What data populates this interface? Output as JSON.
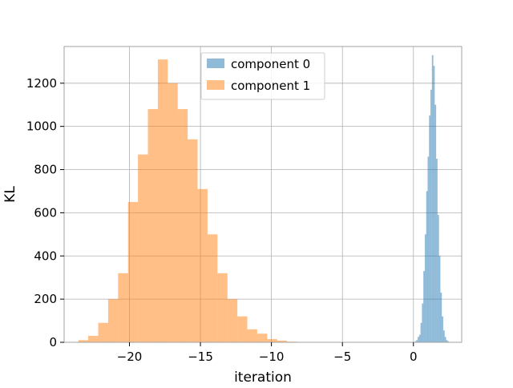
{
  "chart_data": {
    "type": "bar",
    "title": "",
    "xlabel": "iteration",
    "ylabel": "KL",
    "xlim": [
      -24.6,
      3.4
    ],
    "ylim": [
      0,
      1370
    ],
    "x_ticks": [
      -20,
      -15,
      -10,
      -5,
      0
    ],
    "x_tick_labels": [
      "−20",
      "−15",
      "−10",
      "−5",
      "0"
    ],
    "y_ticks": [
      0,
      200,
      400,
      600,
      800,
      1000,
      1200
    ],
    "y_tick_labels": [
      "0",
      "200",
      "400",
      "600",
      "800",
      "1000",
      "1200"
    ],
    "grid": true,
    "legend_position": "upper center",
    "series": [
      {
        "name": "component 0",
        "color": "#1f77b4",
        "opacity": 0.5,
        "bin_edges": [
          0.1,
          0.2,
          0.3,
          0.4,
          0.5,
          0.6,
          0.7,
          0.8,
          0.9,
          1.0,
          1.1,
          1.2,
          1.3,
          1.4,
          1.5,
          1.6,
          1.7,
          1.8,
          1.9,
          2.0,
          2.1,
          2.2,
          2.3,
          2.4,
          2.5,
          2.6
        ],
        "counts": [
          5,
          10,
          25,
          35,
          90,
          180,
          330,
          500,
          700,
          860,
          1050,
          1170,
          1330,
          1280,
          1100,
          850,
          590,
          400,
          230,
          120,
          55,
          25,
          10,
          5,
          2
        ]
      },
      {
        "name": "component 1",
        "color": "#ff7f0e",
        "opacity": 0.5,
        "bin_edges": [
          -23.6,
          -22.9,
          -22.2,
          -21.5,
          -20.8,
          -20.1,
          -19.4,
          -18.7,
          -18.0,
          -17.3,
          -16.6,
          -15.9,
          -15.2,
          -14.5,
          -13.8,
          -13.1,
          -12.4,
          -11.7,
          -11.0,
          -10.3,
          -9.6,
          -8.9,
          -8.2
        ],
        "counts": [
          10,
          30,
          90,
          200,
          320,
          650,
          870,
          1080,
          1310,
          1200,
          1080,
          940,
          710,
          500,
          320,
          200,
          120,
          60,
          40,
          15,
          8,
          3
        ]
      }
    ]
  }
}
